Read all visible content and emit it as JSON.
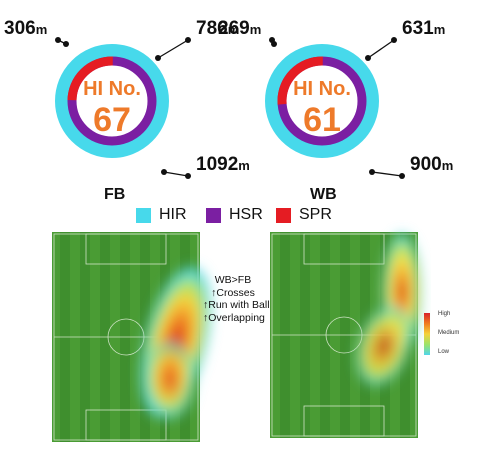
{
  "chart_data": {
    "type": "pie",
    "series_colors": {
      "HIR": "#47d9eb",
      "HSR": "#7b1fa2",
      "SPR": "#e51c23"
    },
    "charts": [
      {
        "label": "FB",
        "center_title": "HI No.",
        "center_value": "67",
        "values": [
          {
            "name": "SPR",
            "value": 306
          },
          {
            "name": "HSR",
            "value": 786
          },
          {
            "name": "HIR",
            "value": 1092
          }
        ],
        "unit": "m"
      },
      {
        "label": "WB",
        "center_title": "HI No.",
        "center_value": "61",
        "values": [
          {
            "name": "SPR",
            "value": 269
          },
          {
            "name": "HSR",
            "value": 631
          },
          {
            "name": "HIR",
            "value": 900
          }
        ],
        "unit": "m"
      }
    ],
    "legend": [
      {
        "label": "HIR",
        "color": "#47d9eb"
      },
      {
        "label": "HSR",
        "color": "#7b1fa2"
      },
      {
        "label": "SPR",
        "color": "#e51c23"
      }
    ]
  },
  "heatmap": {
    "callout": [
      "WB>FB",
      "↑Crosses",
      "↑Run with Ball",
      "↑Overlapping"
    ],
    "scale_labels": [
      "High",
      "Medium",
      "Low"
    ]
  }
}
